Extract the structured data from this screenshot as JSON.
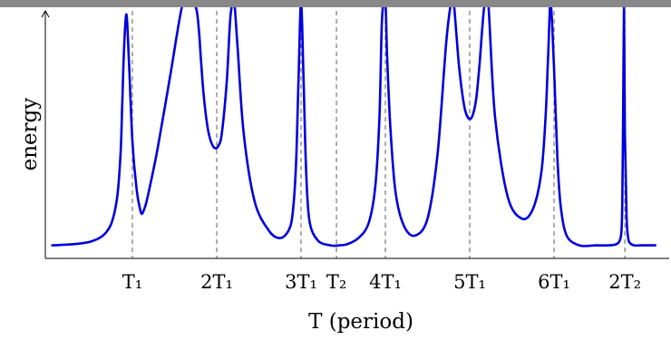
{
  "chart_data": {
    "type": "line",
    "title": "",
    "xlabel": "T (period)",
    "ylabel": "energy",
    "grid": false,
    "legend": "none",
    "x_ticks": [
      {
        "x": 1.0,
        "label": "T₁"
      },
      {
        "x": 2.0,
        "label": "2T₁"
      },
      {
        "x": 3.0,
        "label": "3T₁"
      },
      {
        "x": 3.42,
        "label": "T₂"
      },
      {
        "x": 4.0,
        "label": "4T₁"
      },
      {
        "x": 5.0,
        "label": "5T₁"
      },
      {
        "x": 6.0,
        "label": "6T₁"
      },
      {
        "x": 6.84,
        "label": "2T₂"
      }
    ],
    "xlim": [
      0,
      7.2
    ],
    "ylim": [
      0,
      1
    ],
    "series": [
      {
        "color": "#0000dd",
        "x": [
          0.05,
          0.3,
          0.5,
          0.65,
          0.75,
          0.82,
          0.86,
          0.88,
          0.9,
          0.93,
          0.96,
          1.0,
          1.05,
          1.09,
          1.11,
          1.13,
          1.16,
          1.2,
          1.3,
          1.45,
          1.6,
          1.7,
          1.76,
          1.79,
          1.81,
          1.84,
          1.87,
          1.9,
          1.94,
          1.98,
          2.02,
          2.06,
          2.12,
          2.16,
          2.19,
          2.21,
          2.25,
          2.32,
          2.45,
          2.62,
          2.75,
          2.85,
          2.9,
          2.94,
          2.97,
          3.0,
          3.03,
          3.06,
          3.1,
          3.2,
          3.35,
          3.45,
          3.55,
          3.68,
          3.8,
          3.88,
          3.93,
          3.96,
          4.0,
          4.02,
          4.06,
          4.12,
          4.22,
          4.35,
          4.5,
          4.62,
          4.72,
          4.78,
          4.81,
          4.84,
          4.87,
          4.91,
          4.95,
          5.0,
          5.04,
          5.08,
          5.12,
          5.15,
          5.18,
          5.22,
          5.3,
          5.45,
          5.62,
          5.75,
          5.85,
          5.9,
          5.93,
          5.96,
          6.0,
          6.04,
          6.08,
          6.15,
          6.3,
          6.5,
          6.65,
          6.74,
          6.78,
          6.8,
          6.81,
          6.82,
          6.83,
          6.84,
          6.86,
          6.88,
          6.9,
          6.95,
          7.05,
          7.2
        ],
        "y": [
          0.02,
          0.025,
          0.035,
          0.06,
          0.11,
          0.22,
          0.4,
          0.6,
          0.82,
          0.97,
          0.77,
          0.45,
          0.25,
          0.17,
          0.15,
          0.16,
          0.19,
          0.25,
          0.42,
          0.72,
          1.02,
          1.02,
          0.99,
          0.9,
          0.8,
          0.66,
          0.56,
          0.49,
          0.44,
          0.42,
          0.43,
          0.48,
          0.7,
          0.95,
          1.02,
          1.02,
          0.82,
          0.48,
          0.2,
          0.08,
          0.05,
          0.08,
          0.15,
          0.35,
          0.7,
          1.02,
          0.7,
          0.33,
          0.12,
          0.04,
          0.02,
          0.02,
          0.025,
          0.05,
          0.11,
          0.26,
          0.55,
          0.95,
          1.02,
          0.8,
          0.5,
          0.24,
          0.1,
          0.06,
          0.13,
          0.4,
          0.85,
          1.02,
          1.02,
          0.9,
          0.77,
          0.65,
          0.57,
          0.54,
          0.56,
          0.63,
          0.78,
          0.92,
          1.02,
          1.02,
          0.55,
          0.22,
          0.13,
          0.17,
          0.32,
          0.55,
          0.8,
          1.02,
          0.75,
          0.38,
          0.18,
          0.06,
          0.02,
          0.02,
          0.02,
          0.025,
          0.04,
          0.08,
          0.2,
          0.6,
          1.02,
          0.5,
          0.14,
          0.05,
          0.03,
          0.02,
          0.02,
          0.02
        ]
      }
    ],
    "guides": [
      1.0,
      2.0,
      3.0,
      3.42,
      4.0,
      5.0,
      6.0,
      6.84
    ]
  }
}
